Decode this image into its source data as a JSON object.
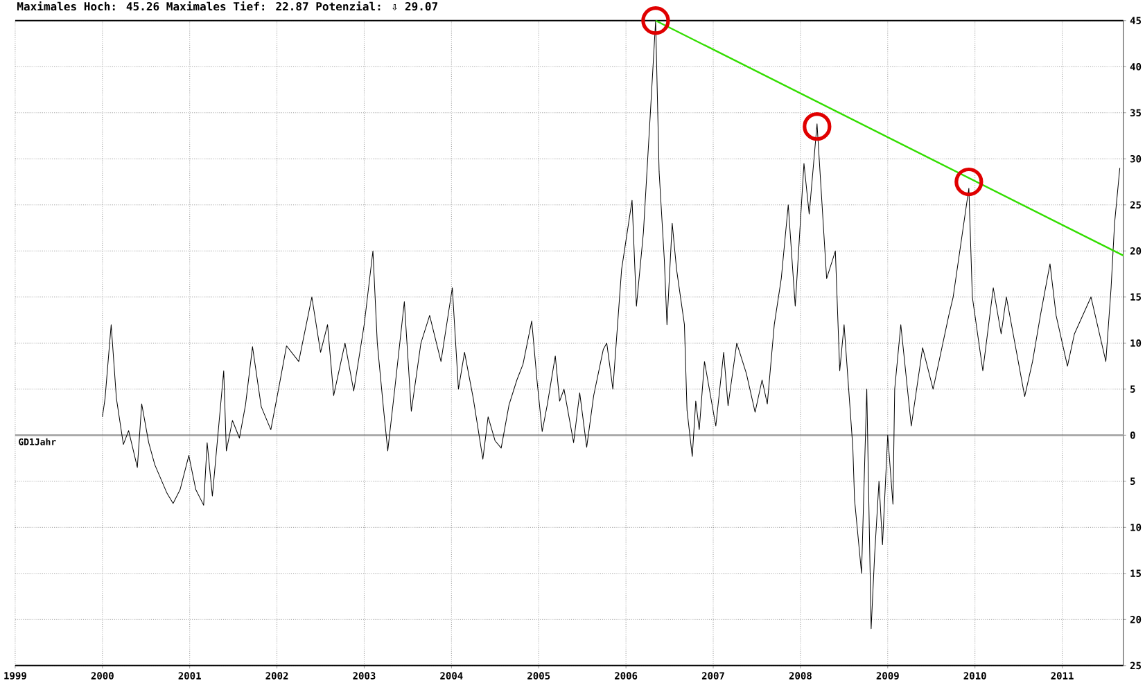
{
  "chart_data": {
    "type": "line",
    "title": "Maximales Hoch: 45.26  Maximales Tief: 22.87  Potenzial: ⇩ 29.07",
    "xlim": [
      1999,
      2011.7
    ],
    "xticks": [
      1999,
      2000,
      2001,
      2002,
      2003,
      2004,
      2005,
      2006,
      2007,
      2008,
      2009,
      2010,
      2011
    ],
    "ylim": [
      -25,
      45
    ],
    "yticks": [
      {
        "value": -25,
        "label": "25"
      },
      {
        "value": -20,
        "label": "20"
      },
      {
        "value": -15,
        "label": "15"
      },
      {
        "value": -10,
        "label": "10"
      },
      {
        "value": -5,
        "label": "5"
      },
      0,
      5,
      10,
      15,
      20,
      25,
      30,
      35,
      40,
      45
    ],
    "grid": true,
    "ref_lines": [
      {
        "axis": "y",
        "value": 0,
        "label": "GD1Jahr",
        "color": "#a0a0a0"
      }
    ],
    "series": [
      {
        "color": "#000000",
        "x": [
          2000.0,
          2000.03,
          2000.1,
          2000.16,
          2000.24,
          2000.3,
          2000.4,
          2000.45,
          2000.53,
          2000.6,
          2000.74,
          2000.81,
          2000.89,
          2000.99,
          2001.07,
          2001.16,
          2001.2,
          2001.26,
          2001.39,
          2001.42,
          2001.49,
          2001.57,
          2001.64,
          2001.72,
          2001.82,
          2001.93,
          2002.03,
          2002.11,
          2002.25,
          2002.4,
          2002.5,
          2002.58,
          2002.65,
          2002.78,
          2002.88,
          2003.0,
          2003.1,
          2003.15,
          2003.22,
          2003.27,
          2003.35,
          2003.46,
          2003.54,
          2003.65,
          2003.75,
          2003.88,
          2004.01,
          2004.08,
          2004.15,
          2004.25,
          2004.36,
          2004.42,
          2004.5,
          2004.57,
          2004.66,
          2004.75,
          2004.82,
          2004.92,
          2004.98,
          2005.04,
          2005.1,
          2005.19,
          2005.24,
          2005.29,
          2005.4,
          2005.47,
          2005.55,
          2005.63,
          2005.74,
          2005.78,
          2005.85,
          2005.95,
          2006.07,
          2006.12,
          2006.2,
          2006.28,
          2006.34,
          2006.38,
          2006.44,
          2006.47,
          2006.53,
          2006.58,
          2006.67,
          2006.7,
          2006.76,
          2006.8,
          2006.84,
          2006.9,
          2007.03,
          2007.12,
          2007.17,
          2007.27,
          2007.38,
          2007.48,
          2007.56,
          2007.62,
          2007.7,
          2007.78,
          2007.86,
          2007.94,
          2008.04,
          2008.1,
          2008.19,
          2008.3,
          2008.4,
          2008.45,
          2008.5,
          2008.6,
          2008.62,
          2008.7,
          2008.76,
          2008.81,
          2008.85,
          2008.9,
          2008.94,
          2009.0,
          2009.06,
          2009.08,
          2009.15,
          2009.27,
          2009.4,
          2009.52,
          2009.7,
          2009.75,
          2009.93,
          2009.97,
          2010.09,
          2010.21,
          2010.3,
          2010.36,
          2010.57,
          2010.66,
          2010.75,
          2010.86,
          2010.93,
          2011.06,
          2011.14,
          2011.33,
          2011.5,
          2011.56,
          2011.6,
          2011.66
        ],
        "values": [
          2,
          4,
          12,
          4,
          -1,
          0.5,
          -3.5,
          3.4,
          -0.8,
          -3.2,
          -6.3,
          -7.4,
          -5.9,
          -2.2,
          -5.9,
          -7.6,
          -0.8,
          -6.6,
          7,
          -1.7,
          1.6,
          -0.3,
          3.3,
          9.6,
          3.1,
          0.6,
          5.6,
          9.7,
          8,
          15,
          9,
          12,
          4.3,
          10,
          4.8,
          12,
          20,
          10,
          3,
          -1.7,
          5,
          14.5,
          2.6,
          10,
          13,
          8,
          16,
          5,
          9,
          4,
          -2.6,
          2,
          -0.6,
          -1.4,
          3.3,
          6,
          7.7,
          12.4,
          6,
          0.4,
          3.4,
          8.6,
          3.7,
          5,
          -0.8,
          4.6,
          -1.3,
          4.3,
          9.3,
          10,
          5,
          18,
          25.5,
          14,
          22,
          35,
          45,
          28.6,
          19,
          12,
          23,
          18,
          12,
          2.7,
          -2.3,
          3.7,
          0.6,
          8,
          1,
          9,
          3.2,
          10,
          6.7,
          2.5,
          6,
          3.4,
          12,
          17,
          25,
          14,
          29.5,
          24,
          33.8,
          17,
          20,
          7,
          12,
          -1.3,
          -7,
          -15,
          5,
          -21,
          -13,
          -5,
          -11.9,
          0,
          -7.5,
          5,
          12,
          1,
          9.5,
          5,
          13,
          15,
          26.8,
          15,
          7,
          16,
          11,
          15,
          4.2,
          8,
          13,
          18.6,
          13,
          7.5,
          11,
          15,
          8,
          16,
          23,
          29
        ]
      },
      {
        "type": "line",
        "color": "#33dd00",
        "x": [
          2006.34,
          2011.7
        ],
        "values": [
          45,
          19.5
        ]
      },
      {
        "type": "scatter",
        "marker": "circle",
        "color": "#e00000",
        "x": [
          2006.34,
          2008.19,
          2009.93
        ],
        "values": [
          45,
          33.5,
          27.5
        ]
      }
    ]
  }
}
